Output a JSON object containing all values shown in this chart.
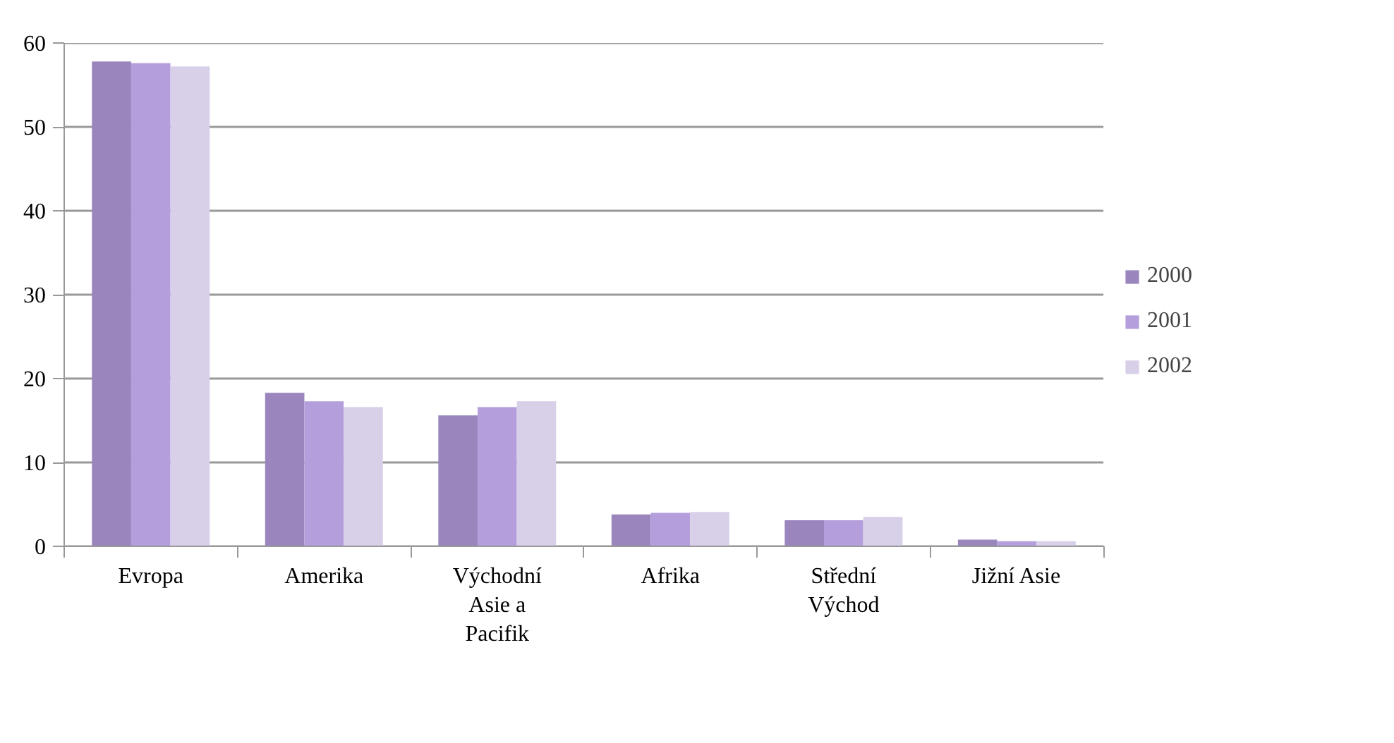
{
  "chart_data": {
    "type": "bar",
    "categories": [
      "Evropa",
      "Amerika",
      "Východní Asie a Pacifik",
      "Afrika",
      "Střední Východ",
      "Jižní Asie"
    ],
    "series": [
      {
        "name": "2000",
        "color": "#9a86bd",
        "values": [
          57.8,
          18.3,
          15.6,
          3.8,
          3.1,
          0.8
        ]
      },
      {
        "name": "2001",
        "color": "#b49fdc",
        "values": [
          57.6,
          17.3,
          16.6,
          4.0,
          3.1,
          0.6
        ]
      },
      {
        "name": "2002",
        "color": "#d8cfe8",
        "values": [
          57.2,
          16.6,
          17.3,
          4.1,
          3.5,
          0.6
        ]
      }
    ],
    "ylim": [
      0,
      60
    ],
    "yticks": [
      0,
      10,
      20,
      30,
      40,
      50,
      60
    ],
    "grid": "y",
    "legend": "right"
  }
}
